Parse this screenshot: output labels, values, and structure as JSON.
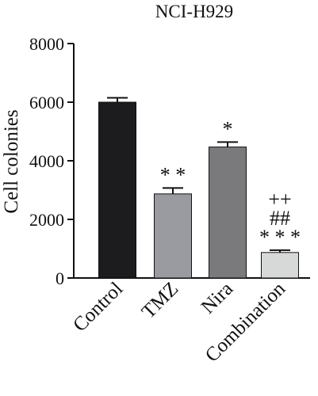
{
  "chart_data": {
    "type": "bar",
    "title": "NCI-H929",
    "ylabel": "Cell colonies",
    "xlabel": "",
    "ylim": [
      0,
      8000
    ],
    "yticks": [
      0,
      2000,
      4000,
      6000,
      8000
    ],
    "categories": [
      "Control",
      "TMZ",
      "Nira",
      "Combination"
    ],
    "values": [
      6000,
      2870,
      4470,
      870
    ],
    "errors": [
      150,
      200,
      170,
      80
    ],
    "colors": [
      "#1c1c1e",
      "#9a9aa1",
      "#7a7a7c",
      "#d7d8d8"
    ],
    "annotations": [
      [],
      [
        "* *"
      ],
      [
        "*"
      ],
      [
        "* * *",
        "##",
        "++"
      ]
    ],
    "grid": false,
    "legend": "none"
  }
}
